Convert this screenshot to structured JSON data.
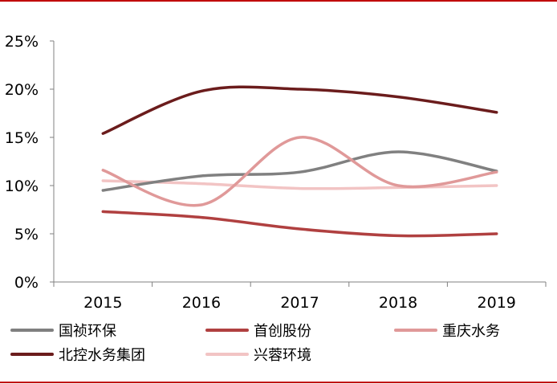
{
  "chart_data": {
    "type": "line",
    "title": "",
    "xlabel": "",
    "ylabel": "",
    "categories": [
      "2015",
      "2016",
      "2017",
      "2018",
      "2019"
    ],
    "y_ticks": [
      "0%",
      "5%",
      "10%",
      "15%",
      "20%",
      "25%"
    ],
    "ylim": [
      0,
      25
    ],
    "grid": false,
    "legend_position": "bottom",
    "frame_color": "#c00000",
    "series": [
      {
        "name": "国祯环保",
        "color": "#808080",
        "values": [
          9.5,
          11.0,
          11.4,
          13.5,
          11.5
        ]
      },
      {
        "name": "首创股份",
        "color": "#b04040",
        "values": [
          7.3,
          6.7,
          5.5,
          4.8,
          5.0
        ]
      },
      {
        "name": "重庆水务",
        "color": "#e09999",
        "values": [
          11.6,
          8.0,
          15.0,
          10.0,
          11.4
        ]
      },
      {
        "name": "北控水务集团",
        "color": "#6b1c1c",
        "values": [
          15.4,
          19.8,
          20.0,
          19.2,
          17.6
        ]
      },
      {
        "name": "兴蓉环境",
        "color": "#f2c4c4",
        "values": [
          10.5,
          10.2,
          9.7,
          9.8,
          10.0
        ]
      }
    ]
  }
}
